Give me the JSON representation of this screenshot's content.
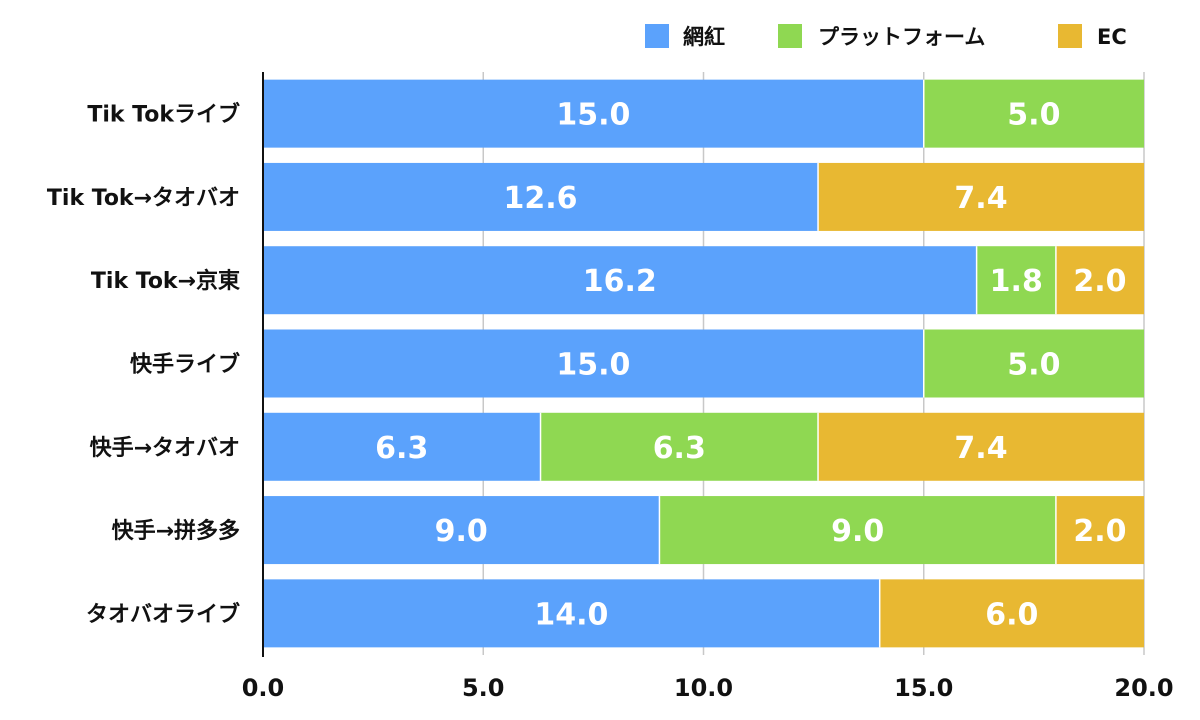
{
  "chart_data": {
    "type": "bar",
    "orientation": "horizontal",
    "stacked": true,
    "categories": [
      "Tik Tokライブ",
      "Tik Tok→タオバオ",
      "Tik Tok→京東",
      "快手ライブ",
      "快手→タオバオ",
      "快手→拼多多",
      "タオバオライブ"
    ],
    "series": [
      {
        "name": "網紅",
        "color": "#5ba2fc",
        "values": [
          15.0,
          12.6,
          16.2,
          15.0,
          6.3,
          9.0,
          14.0
        ]
      },
      {
        "name": "プラットフォーム",
        "color": "#8fd852",
        "values": [
          5.0,
          0,
          1.8,
          5.0,
          6.3,
          9.0,
          0
        ]
      },
      {
        "name": "EC",
        "color": "#e8b832",
        "values": [
          0,
          7.4,
          2.0,
          0,
          7.4,
          2.0,
          6.0
        ]
      }
    ],
    "xlim": [
      0,
      20
    ],
    "xticks": [
      "0.0",
      "5.0",
      "10.0",
      "15.0",
      "20.0"
    ],
    "grid": true,
    "legend_position": "top-right"
  }
}
